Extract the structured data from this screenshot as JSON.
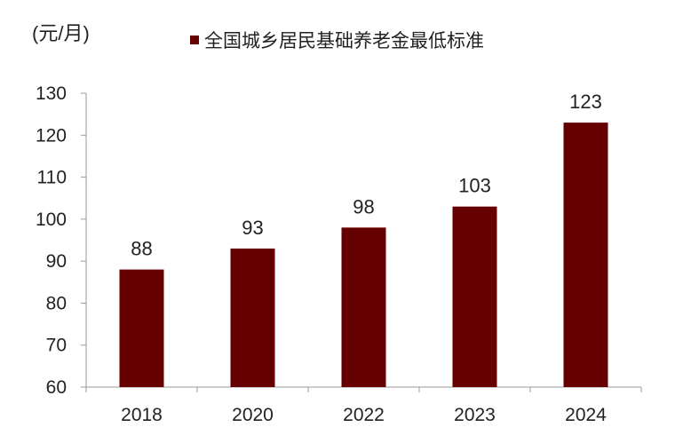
{
  "unit_label": "(元/月)",
  "colors": {
    "bar": "#660000",
    "axis": "#999999"
  },
  "chart_data": {
    "type": "bar",
    "categories": [
      "2018",
      "2020",
      "2022",
      "2023",
      "2024"
    ],
    "series": [
      {
        "name": "全国城乡居民基础养老金最低标准",
        "values": [
          88,
          93,
          98,
          103,
          123
        ]
      }
    ],
    "ylim": [
      60,
      130
    ],
    "yticks": [
      "60",
      "70",
      "80",
      "90",
      "100",
      "110",
      "120",
      "130"
    ],
    "data_labels": [
      "88",
      "93",
      "98",
      "103",
      "123"
    ],
    "legend": "top",
    "grid": false
  }
}
